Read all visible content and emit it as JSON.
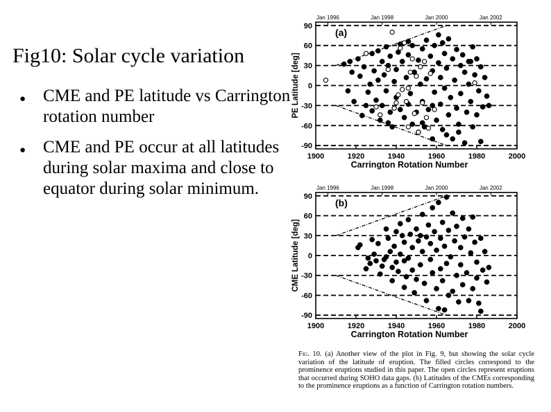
{
  "slide": {
    "title": "Fig10: Solar cycle variation",
    "bullets": [
      "CME and PE latitude vs Carrington rotation number",
      "CME and PE occur at all latitudes during solar maxima and close to equator during solar minimum."
    ]
  },
  "caption": {
    "label": "Fig. 10.",
    "text": "(a) Another view of the plot in Fig. 9, but showing the solar cycle variation of the latitude of eruption. The filled circles correspond to the prominence eruptions studied in this paper. The open circles represent eruptions that occurred during SOHO data gaps. (b) Latitudes of the CMEs corresponding to the prominence eruptions as a function of Carrington rotation numbers."
  },
  "chart_data": [
    {
      "type": "scatter",
      "panel_label": "(a)",
      "ylabel": "PE Latitude [deg]",
      "xlabel": "Carrington Rotation Number",
      "xlim": [
        1900,
        2000
      ],
      "ylim": [
        -95,
        95
      ],
      "xticks": [
        1900,
        1920,
        1940,
        1960,
        1980,
        2000
      ],
      "yticks": [
        90,
        60,
        30,
        0,
        -30,
        -60,
        -90
      ],
      "top_axis_labels": [
        {
          "x": 1906,
          "label": "Jan 1996"
        },
        {
          "x": 1933,
          "label": "Jan 1998"
        },
        {
          "x": 1960,
          "label": "Jan 2000"
        },
        {
          "x": 1987,
          "label": "Jan 2002"
        }
      ],
      "envelope": {
        "upper": [
          [
            1910,
            30
          ],
          [
            1965,
            90
          ]
        ],
        "lower": [
          [
            1910,
            -30
          ],
          [
            1965,
            -90
          ]
        ]
      },
      "series": [
        {
          "name": "Filled circles (prominence eruptions)",
          "marker": "filled",
          "points": [
            [
              1914,
              32
            ],
            [
              1916,
              -8
            ],
            [
              1918,
              20
            ],
            [
              1919,
              -24
            ],
            [
              1921,
              40
            ],
            [
              1922,
              14
            ],
            [
              1923,
              -45
            ],
            [
              1924,
              28
            ],
            [
              1926,
              -10
            ],
            [
              1927,
              2
            ],
            [
              1928,
              48
            ],
            [
              1928,
              -38
            ],
            [
              1929,
              22
            ],
            [
              1930,
              -22
            ],
            [
              1931,
              52
            ],
            [
              1931,
              8
            ],
            [
              1932,
              -52
            ],
            [
              1933,
              36
            ],
            [
              1933,
              -30
            ],
            [
              1934,
              16
            ],
            [
              1935,
              -8
            ],
            [
              1935,
              58
            ],
            [
              1936,
              30
            ],
            [
              1937,
              -40
            ],
            [
              1937,
              44
            ],
            [
              1938,
              -62
            ],
            [
              1939,
              6
            ],
            [
              1940,
              24
            ],
            [
              1940,
              -18
            ],
            [
              1941,
              50
            ],
            [
              1942,
              -36
            ],
            [
              1942,
              62
            ],
            [
              1943,
              36
            ],
            [
              1944,
              -48
            ],
            [
              1945,
              12
            ],
            [
              1946,
              -28
            ],
            [
              1946,
              46
            ],
            [
              1947,
              -12
            ],
            [
              1948,
              60
            ],
            [
              1948,
              -58
            ],
            [
              1949,
              20
            ],
            [
              1950,
              -40
            ],
            [
              1951,
              38
            ],
            [
              1951,
              -70
            ],
            [
              1952,
              2
            ],
            [
              1953,
              55
            ],
            [
              1953,
              -24
            ],
            [
              1954,
              -62
            ],
            [
              1955,
              10
            ],
            [
              1955,
              68
            ],
            [
              1956,
              -36
            ],
            [
              1957,
              44
            ],
            [
              1958,
              -80
            ],
            [
              1958,
              22
            ],
            [
              1959,
              -10
            ],
            [
              1959,
              60
            ],
            [
              1960,
              -52
            ],
            [
              1961,
              34
            ],
            [
              1961,
              76
            ],
            [
              1962,
              -28
            ],
            [
              1962,
              12
            ],
            [
              1963,
              -66
            ],
            [
              1964,
              48
            ],
            [
              1964,
              -4
            ],
            [
              1965,
              26
            ],
            [
              1966,
              -44
            ],
            [
              1966,
              70
            ],
            [
              1967,
              -18
            ],
            [
              1968,
              40
            ],
            [
              1968,
              -80
            ],
            [
              1969,
              8
            ],
            [
              1970,
              -34
            ],
            [
              1970,
              54
            ],
            [
              1971,
              -58
            ],
            [
              1972,
              30
            ],
            [
              1972,
              -12
            ],
            [
              1973,
              46
            ],
            [
              1974,
              -86
            ],
            [
              1974,
              20
            ],
            [
              1975,
              -40
            ],
            [
              1976,
              36
            ],
            [
              1976,
              2
            ],
            [
              1977,
              -24
            ],
            [
              1978,
              58
            ],
            [
              1978,
              -62
            ],
            [
              1979,
              16
            ],
            [
              1980,
              -44
            ],
            [
              1980,
              40
            ],
            [
              1981,
              -8
            ],
            [
              1982,
              28
            ],
            [
              1982,
              -84
            ],
            [
              1983,
              -32
            ],
            [
              1984,
              12
            ],
            [
              1985,
              -16
            ],
            [
              1986,
              -30
            ],
            [
              1917,
              36
            ],
            [
              1925,
              -30
            ],
            [
              1936,
              -56
            ],
            [
              1946,
              66
            ],
            [
              1958,
              -30
            ],
            [
              1965,
              -74
            ],
            [
              1971,
              -70
            ],
            [
              1977,
              36
            ],
            [
              1963,
              64
            ],
            [
              1953,
              -56
            ]
          ]
        },
        {
          "name": "Open circles (SOHO data gaps)",
          "marker": "open",
          "points": [
            [
              1905,
              8
            ],
            [
              1925,
              48
            ],
            [
              1930,
              -32
            ],
            [
              1932,
              -44
            ],
            [
              1936,
              24
            ],
            [
              1938,
              80
            ],
            [
              1940,
              -26
            ],
            [
              1941,
              -14
            ],
            [
              1942,
              56
            ],
            [
              1944,
              64
            ],
            [
              1945,
              -24
            ],
            [
              1946,
              -62
            ],
            [
              1947,
              20
            ],
            [
              1949,
              -42
            ],
            [
              1951,
              -70
            ],
            [
              1952,
              28
            ],
            [
              1953,
              -26
            ],
            [
              1954,
              36
            ],
            [
              1955,
              -48
            ],
            [
              1956,
              -64
            ],
            [
              1957,
              18
            ],
            [
              1959,
              -36
            ],
            [
              1979,
              4
            ],
            [
              1948,
              40
            ],
            [
              1950,
              14
            ],
            [
              1943,
              -6
            ],
            [
              1939,
              -34
            ],
            [
              1946,
              -4
            ]
          ]
        }
      ]
    },
    {
      "type": "scatter",
      "panel_label": "(b)",
      "ylabel": "CME Latitude [deg]",
      "xlabel": "Carrington Rotation Number",
      "xlim": [
        1900,
        2000
      ],
      "ylim": [
        -95,
        95
      ],
      "xticks": [
        1900,
        1920,
        1940,
        1960,
        1980,
        2000
      ],
      "yticks": [
        90,
        60,
        30,
        0,
        -30,
        -60,
        -90
      ],
      "top_axis_labels": [
        {
          "x": 1906,
          "label": "Jan 1996"
        },
        {
          "x": 1933,
          "label": "Jan 1998"
        },
        {
          "x": 1960,
          "label": "Jan 2000"
        },
        {
          "x": 1987,
          "label": "Jan 2002"
        }
      ],
      "envelope": {
        "upper": [
          [
            1910,
            30
          ],
          [
            1965,
            90
          ]
        ],
        "lower": [
          [
            1910,
            -30
          ],
          [
            1965,
            -90
          ]
        ]
      },
      "series": [
        {
          "name": "CME latitudes",
          "marker": "filled",
          "points": [
            [
              1921,
              12
            ],
            [
              1922,
              16
            ],
            [
              1925,
              -20
            ],
            [
              1926,
              -4
            ],
            [
              1927,
              -12
            ],
            [
              1928,
              24
            ],
            [
              1929,
              2
            ],
            [
              1930,
              -8
            ],
            [
              1931,
              18
            ],
            [
              1932,
              -28
            ],
            [
              1933,
              -16
            ],
            [
              1934,
              -6
            ],
            [
              1935,
              40
            ],
            [
              1935,
              -2
            ],
            [
              1936,
              26
            ],
            [
              1937,
              6
            ],
            [
              1938,
              -38
            ],
            [
              1939,
              14
            ],
            [
              1940,
              36
            ],
            [
              1940,
              -10
            ],
            [
              1941,
              -24
            ],
            [
              1942,
              48
            ],
            [
              1942,
              2
            ],
            [
              1943,
              30
            ],
            [
              1944,
              -48
            ],
            [
              1944,
              20
            ],
            [
              1945,
              -32
            ],
            [
              1946,
              54
            ],
            [
              1946,
              -4
            ],
            [
              1947,
              32
            ],
            [
              1948,
              -22
            ],
            [
              1948,
              12
            ],
            [
              1949,
              -56
            ],
            [
              1950,
              40
            ],
            [
              1950,
              -36
            ],
            [
              1951,
              22
            ],
            [
              1952,
              -14
            ],
            [
              1953,
              62
            ],
            [
              1953,
              6
            ],
            [
              1954,
              -42
            ],
            [
              1955,
              28
            ],
            [
              1955,
              -68
            ],
            [
              1956,
              46
            ],
            [
              1957,
              -6
            ],
            [
              1957,
              18
            ],
            [
              1958,
              -26
            ],
            [
              1958,
              72
            ],
            [
              1959,
              36
            ],
            [
              1960,
              -50
            ],
            [
              1960,
              8
            ],
            [
              1961,
              80
            ],
            [
              1961,
              -80
            ],
            [
              1962,
              26
            ],
            [
              1962,
              -20
            ],
            [
              1963,
              50
            ],
            [
              1963,
              -38
            ],
            [
              1964,
              14
            ],
            [
              1964,
              -82
            ],
            [
              1965,
              88
            ],
            [
              1965,
              -12
            ],
            [
              1966,
              38
            ],
            [
              1966,
              -60
            ],
            [
              1967,
              -2
            ],
            [
              1968,
              -54
            ],
            [
              1968,
              64
            ],
            [
              1969,
              22
            ],
            [
              1970,
              -30
            ],
            [
              1970,
              44
            ],
            [
              1971,
              -70
            ],
            [
              1972,
              12
            ],
            [
              1972,
              -14
            ],
            [
              1973,
              56
            ],
            [
              1973,
              -44
            ],
            [
              1974,
              28
            ],
            [
              1975,
              -26
            ],
            [
              1976,
              -68
            ],
            [
              1976,
              40
            ],
            [
              1977,
              4
            ],
            [
              1978,
              -50
            ],
            [
              1978,
              58
            ],
            [
              1979,
              20
            ],
            [
              1980,
              -34
            ],
            [
              1980,
              -10
            ],
            [
              1981,
              -72
            ],
            [
              1982,
              26
            ],
            [
              1982,
              -84
            ],
            [
              1983,
              -22
            ],
            [
              1984,
              6
            ],
            [
              1985,
              -40
            ],
            [
              1986,
              -18
            ],
            [
              1938,
              -18
            ],
            [
              1944,
              -8
            ],
            [
              1952,
              30
            ]
          ]
        }
      ]
    }
  ]
}
